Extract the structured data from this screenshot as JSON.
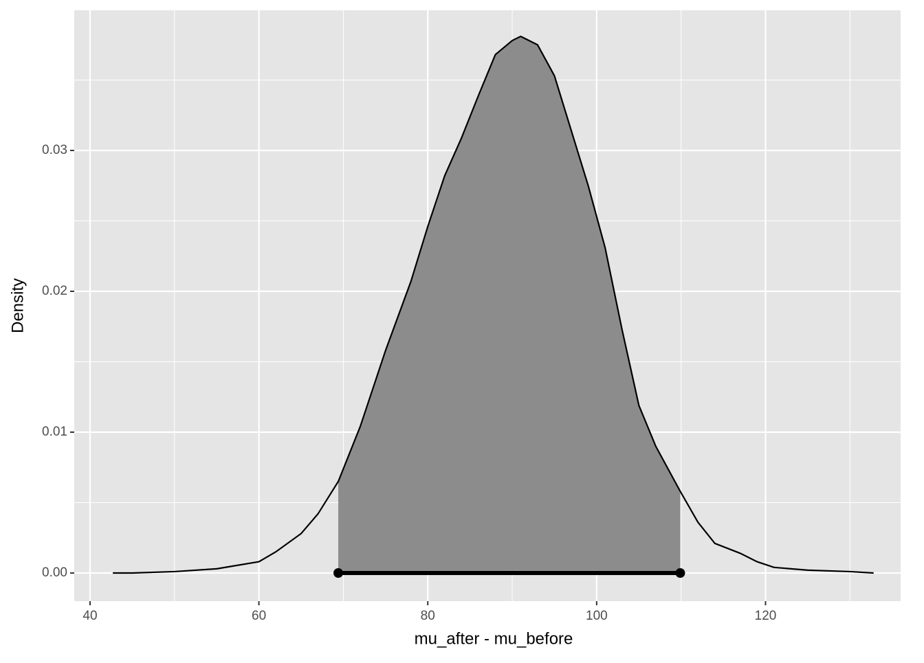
{
  "chart_data": {
    "type": "density",
    "x_label": "mu_after - mu_before",
    "y_label": "Density",
    "x": [
      42.7,
      45,
      50,
      55,
      57,
      60,
      62,
      65,
      67,
      69.4,
      72,
      75,
      78,
      80,
      82,
      84,
      86,
      88,
      90,
      91,
      93,
      95,
      97,
      99,
      101,
      103,
      105,
      107,
      109.9,
      112,
      114,
      117,
      119,
      121,
      125,
      130,
      132.8
    ],
    "values": [
      0,
      0,
      0.0001,
      0.0003,
      0.0005,
      0.0008,
      0.0015,
      0.0028,
      0.0042,
      0.0065,
      0.0104,
      0.0158,
      0.0207,
      0.0246,
      0.0282,
      0.0309,
      0.0339,
      0.0368,
      0.0378,
      0.0381,
      0.0375,
      0.0353,
      0.0314,
      0.0275,
      0.0231,
      0.0173,
      0.0119,
      0.009,
      0.0058,
      0.0036,
      0.0021,
      0.0014,
      0.0008,
      0.0004,
      0.0002,
      0.0001,
      0
    ],
    "interval": [
      69.4,
      109.9
    ],
    "line_color": "#000000",
    "fill_color": "#878787",
    "panel_color": "#e5e5e5",
    "xlim": [
      38.13,
      136.0
    ],
    "ylim": [
      -0.002,
      0.03995
    ],
    "xticks": [
      40,
      60,
      80,
      100,
      120
    ],
    "yticks": [
      {
        "value": 0,
        "label": "0.00"
      },
      0.01,
      0.02,
      0.03
    ],
    "x_minor_ticks": [
      50,
      70,
      90,
      110,
      130
    ],
    "y_minor_ticks": [
      0.005,
      0.015,
      0.025,
      0.035
    ],
    "grid": true
  }
}
